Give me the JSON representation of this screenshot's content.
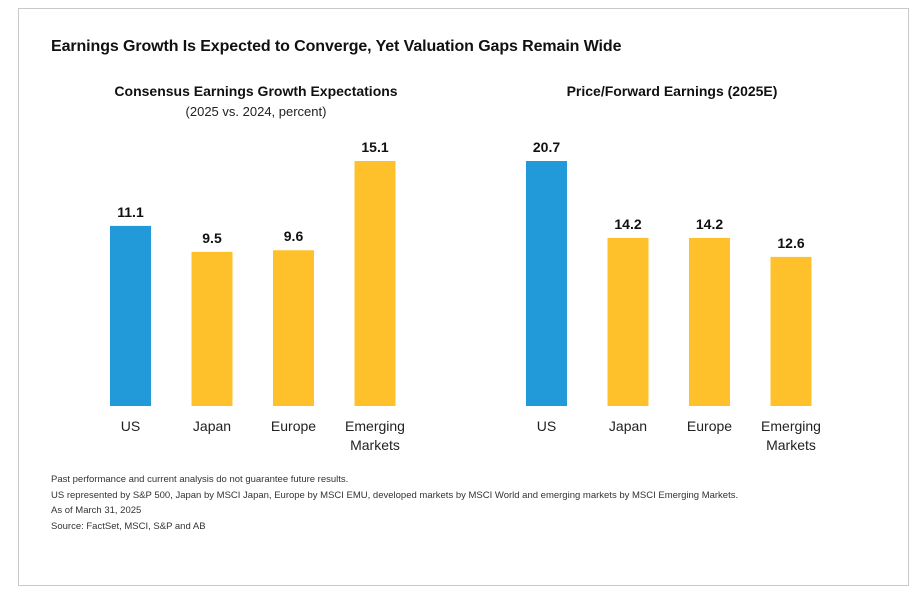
{
  "title": "Earnings Growth Is Expected to Converge, Yet Valuation Gaps Remain Wide",
  "colors": {
    "highlight": "#2299d8",
    "default": "#ffc12b"
  },
  "chart_data": [
    {
      "type": "bar",
      "title": "Consensus Earnings Growth Expectations",
      "subtitle": "(2025 vs. 2024, percent)",
      "categories": [
        "US",
        "Japan",
        "Europe",
        "Emerging Markets"
      ],
      "category_lines": [
        [
          "US"
        ],
        [
          "Japan"
        ],
        [
          "Europe"
        ],
        [
          "Emerging",
          "Markets"
        ]
      ],
      "values": [
        11.1,
        9.5,
        9.6,
        15.1
      ],
      "value_labels": [
        "11.1",
        "9.5",
        "9.6",
        "15.1"
      ],
      "highlight": [
        true,
        false,
        false,
        false
      ],
      "ylim": [
        0,
        15.1
      ],
      "grid": false,
      "legend": "none"
    },
    {
      "type": "bar",
      "title": "Price/Forward Earnings (2025E)",
      "categories": [
        "US",
        "Japan",
        "Europe",
        "Emerging Markets"
      ],
      "category_lines": [
        [
          "US"
        ],
        [
          "Japan"
        ],
        [
          "Europe"
        ],
        [
          "Emerging",
          "Markets"
        ]
      ],
      "values": [
        20.7,
        14.2,
        14.2,
        12.6
      ],
      "value_labels": [
        "20.7",
        "14.2",
        "14.2",
        "12.6"
      ],
      "highlight": [
        true,
        false,
        false,
        false
      ],
      "ylim": [
        0,
        20.7
      ],
      "grid": false,
      "legend": "none"
    }
  ],
  "notes": [
    "Past performance and current analysis do not guarantee future results.",
    "US represented by S&P 500, Japan by MSCI Japan, Europe by MSCI EMU, developed markets by MSCI World and emerging markets by MSCI Emerging Markets.",
    "As of March 31, 2025",
    "Source: FactSet, MSCI, S&P and AB"
  ]
}
